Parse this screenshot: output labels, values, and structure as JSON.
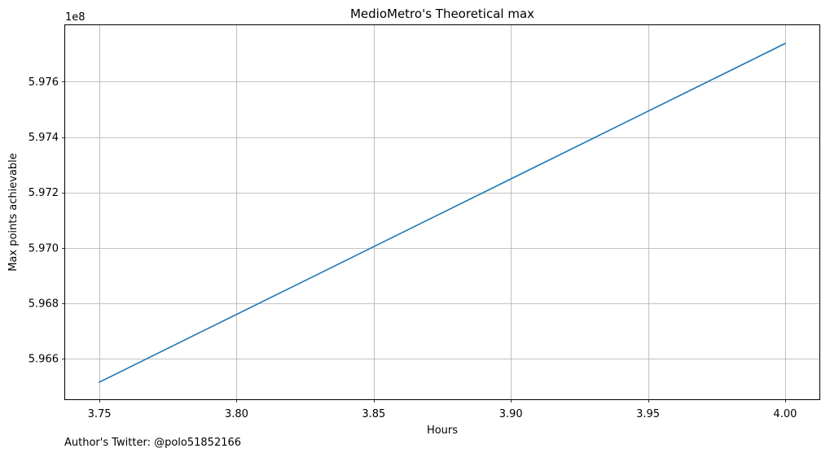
{
  "chart_data": {
    "type": "line",
    "title": "MedioMetro's Theoretical max",
    "xlabel": "Hours",
    "ylabel": "Max points achievable",
    "y_offset_label": "1e8",
    "xlim": [
      3.7375,
      4.0125
    ],
    "ylim": [
      5.96453,
      5.97804
    ],
    "x_ticks": [
      3.75,
      3.8,
      3.85,
      3.9,
      3.95,
      4.0
    ],
    "x_tick_labels": [
      "3.75",
      "3.80",
      "3.85",
      "3.90",
      "3.95",
      "4.00"
    ],
    "y_ticks": [
      5.966,
      5.968,
      5.97,
      5.972,
      5.974,
      5.976
    ],
    "y_tick_labels": [
      "5.966",
      "5.968",
      "5.970",
      "5.972",
      "5.974",
      "5.976"
    ],
    "grid": true,
    "series": [
      {
        "color": "#1f77b4",
        "x": [
          3.75,
          4.0
        ],
        "y": [
          5.96515,
          5.97738
        ]
      }
    ]
  },
  "footnote": "Author's Twitter: @polo51852166"
}
